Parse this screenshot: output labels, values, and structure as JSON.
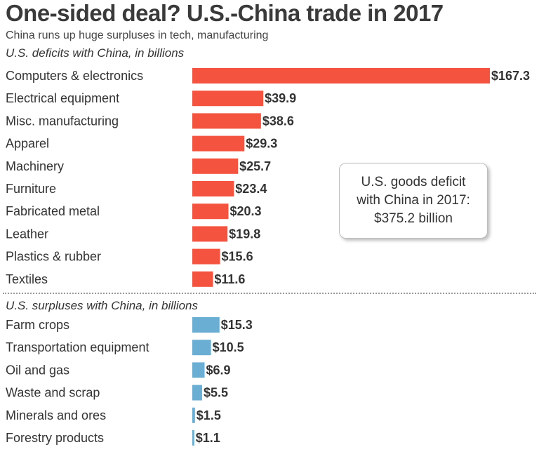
{
  "chart_data": {
    "type": "bar",
    "orientation": "horizontal",
    "title": "One-sided deal? U.S.-China trade in 2017",
    "subtitle": "China runs up huge surpluses in tech, manufacturing",
    "groups": [
      {
        "name": "U.S. deficits with China, in billions",
        "color": "#f4533f",
        "categories": [
          "Computers & electronics",
          "Electrical equipment",
          "Misc. manufacturing",
          "Apparel",
          "Machinery",
          "Furniture",
          "Fabricated metal",
          "Leather",
          "Plastics & rubber",
          "Textiles"
        ],
        "values": [
          167.3,
          39.9,
          38.6,
          29.3,
          25.7,
          23.4,
          20.3,
          19.8,
          15.6,
          11.6
        ],
        "labels": [
          "$167.3",
          "$39.9",
          "$38.6",
          "$29.3",
          "$25.7",
          "$23.4",
          "$20.3",
          "$19.8",
          "$15.6",
          "$11.6"
        ]
      },
      {
        "name": "U.S. surpluses with China, in billions",
        "color": "#6aaed3",
        "categories": [
          "Farm crops",
          "Transportation equipment",
          "Oil and gas",
          "Waste and scrap",
          "Minerals and ores",
          "Forestry products"
        ],
        "values": [
          15.3,
          10.5,
          6.9,
          5.5,
          1.5,
          1.1
        ],
        "labels": [
          "$15.3",
          "$10.5",
          "$6.9",
          "$5.5",
          "$1.5",
          "$1.1"
        ]
      }
    ],
    "annotation": [
      "U.S. goods deficit",
      "with China in 2017:",
      "$375.2 billion"
    ]
  }
}
